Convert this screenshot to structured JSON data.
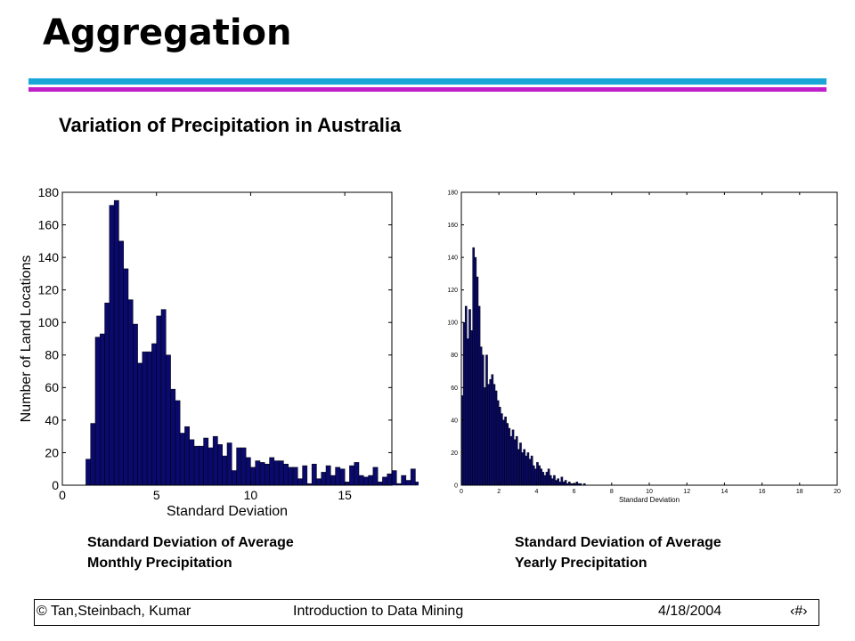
{
  "slide": {
    "title": "Aggregation",
    "subtitle": "Variation of Precipitation in Australia",
    "captions": [
      {
        "line1": "Standard Deviation of Average",
        "line2": "Monthly Precipitation"
      },
      {
        "line1": "Standard Deviation of Average",
        "line2": "Yearly Precipitation"
      }
    ],
    "footer": {
      "left": "© Tan,Steinbach, Kumar",
      "center": "Introduction to Data Mining",
      "date": "4/18/2004",
      "page": "‹#›"
    }
  },
  "colors": {
    "bar": "#0a0a6e",
    "rule_top": "#1aa7d8",
    "rule_bottom": "#c01ec8"
  },
  "chart_data": [
    {
      "type": "bar",
      "xlabel": "Standard Deviation",
      "ylabel": "Number of Land Locations",
      "xlim": [
        0,
        17.5
      ],
      "ylim": [
        0,
        180
      ],
      "xticks": [
        0,
        5,
        10,
        15
      ],
      "yticks": [
        0,
        20,
        40,
        60,
        80,
        100,
        120,
        140,
        160,
        180
      ],
      "bin_width": 0.25,
      "x_start": 1.25,
      "values": [
        16,
        38,
        91,
        93,
        112,
        172,
        175,
        150,
        133,
        114,
        99,
        75,
        82,
        82,
        87,
        104,
        108,
        80,
        59,
        52,
        32,
        36,
        28,
        24,
        24,
        29,
        23,
        30,
        25,
        18,
        26,
        9,
        23,
        23,
        17,
        11,
        15,
        14,
        13,
        17,
        15,
        15,
        13,
        11,
        11,
        4,
        12,
        1,
        13,
        4,
        8,
        12,
        6,
        11,
        10,
        2,
        12,
        14,
        6,
        5,
        6,
        11,
        2,
        5,
        7,
        9,
        1,
        6,
        3,
        10,
        2,
        2,
        1,
        2,
        0,
        2
      ]
    },
    {
      "type": "bar",
      "xlabel": "Standard Deviation",
      "ylabel": "",
      "xlim": [
        0,
        20
      ],
      "ylim": [
        0,
        180
      ],
      "xticks": [
        0,
        2,
        4,
        6,
        8,
        10,
        12,
        14,
        16,
        18,
        20
      ],
      "yticks": [
        0,
        20,
        40,
        60,
        80,
        100,
        120,
        140,
        160,
        180
      ],
      "bin_width": 0.1,
      "x_start": 0.0,
      "values": [
        55,
        100,
        110,
        90,
        108,
        95,
        146,
        140,
        128,
        110,
        85,
        80,
        60,
        80,
        62,
        65,
        68,
        62,
        58,
        52,
        48,
        44,
        40,
        42,
        38,
        35,
        30,
        34,
        28,
        30,
        22,
        26,
        20,
        22,
        18,
        20,
        16,
        18,
        12,
        10,
        14,
        12,
        10,
        8,
        6,
        8,
        10,
        6,
        4,
        6,
        3,
        4,
        2,
        5,
        2,
        3,
        1,
        2,
        1,
        1,
        1,
        2,
        1,
        1,
        0,
        1,
        0,
        0,
        0,
        0
      ]
    }
  ]
}
